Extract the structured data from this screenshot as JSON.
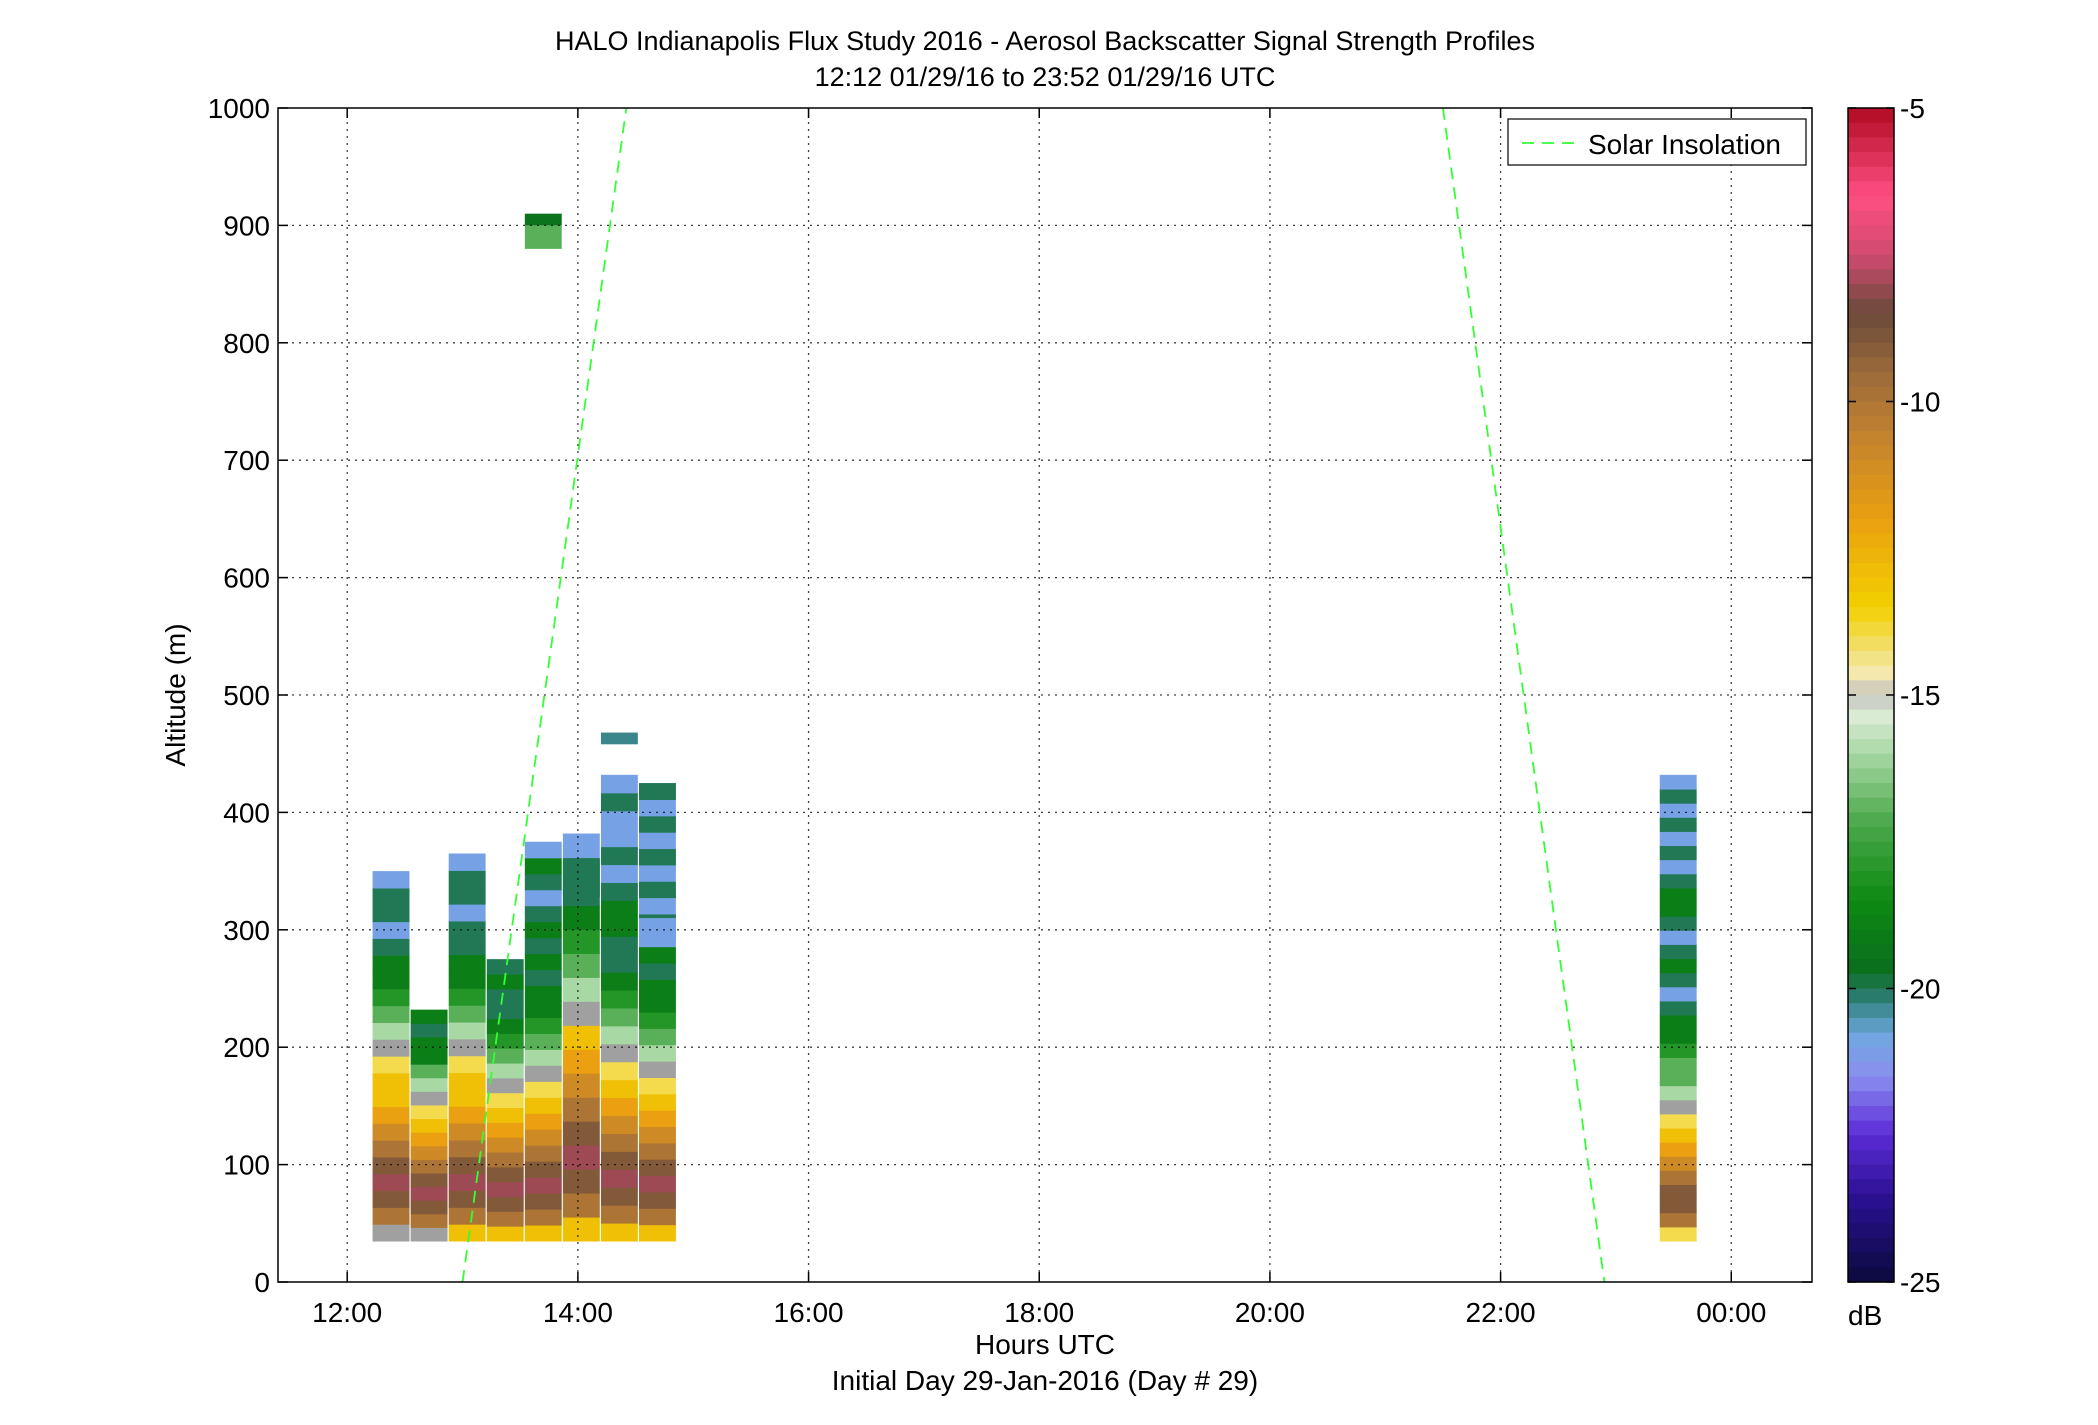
{
  "chart_data": {
    "type": "heatmap",
    "title": "HALO Indianapolis Flux Study 2016 - Aerosol Backscatter Signal Strength Profiles",
    "subtitle": "12:12 01/29/16 to 23:52 01/29/16  UTC",
    "xlabel": "Hours UTC",
    "xlabel2": "Initial Day 29-Jan-2016 (Day # 29)",
    "ylabel": "Altitude (m)",
    "xlim": [
      11.4,
      24.7
    ],
    "ylim": [
      0,
      1000
    ],
    "x_ticks": [
      12,
      14,
      16,
      18,
      20,
      22,
      24
    ],
    "x_tick_labels": [
      "12:00",
      "14:00",
      "16:00",
      "18:00",
      "20:00",
      "22:00",
      "00:00"
    ],
    "y_ticks": [
      0,
      100,
      200,
      300,
      400,
      500,
      600,
      700,
      800,
      900,
      1000
    ],
    "grid": true,
    "colorbar": {
      "label": "dB",
      "range": [
        -25,
        -5
      ],
      "ticks": [
        -5,
        -10,
        -15,
        -20,
        -25
      ],
      "stops": [
        {
          "v": -25,
          "c": "#0b0b3c"
        },
        {
          "v": -23.6,
          "c": "#2a1090"
        },
        {
          "v": -22.5,
          "c": "#5b2bd6"
        },
        {
          "v": -21.5,
          "c": "#8a8ef0"
        },
        {
          "v": -20.8,
          "c": "#6fa8e0"
        },
        {
          "v": -20.2,
          "c": "#2f7f7a"
        },
        {
          "v": -19.7,
          "c": "#0a6e1e"
        },
        {
          "v": -18.5,
          "c": "#0d8a12"
        },
        {
          "v": -17.2,
          "c": "#4aa84a"
        },
        {
          "v": -16.0,
          "c": "#a8d8a4"
        },
        {
          "v": -15.2,
          "c": "#e8f0e2"
        },
        {
          "v": -15.0,
          "c": "#a0a0a0"
        },
        {
          "v": -14.8,
          "c": "#f4ecc8"
        },
        {
          "v": -13.5,
          "c": "#f2d000"
        },
        {
          "v": -12.0,
          "c": "#eaa010"
        },
        {
          "v": -10.5,
          "c": "#c08030"
        },
        {
          "v": -9.5,
          "c": "#9a6a3a"
        },
        {
          "v": -8.5,
          "c": "#6a4a3a"
        },
        {
          "v": -7.5,
          "c": "#d04a70"
        },
        {
          "v": -6.5,
          "c": "#ff4f82"
        },
        {
          "v": -5,
          "c": "#b00a22"
        }
      ]
    },
    "legend": {
      "label": "Solar Insolation",
      "position": "top-right"
    },
    "solar_insolation": [
      {
        "x": [
          13.0,
          14.42
        ],
        "y": [
          0,
          1000
        ]
      },
      {
        "x": [
          21.5,
          22.9
        ],
        "y": [
          1000,
          0
        ]
      }
    ],
    "profiles": [
      {
        "t": 12.22,
        "top": 350,
        "values": [
          -15,
          -10,
          -9,
          -8,
          -9,
          -10,
          -11,
          -12,
          -13,
          -13,
          -14,
          -15,
          -16,
          -17,
          -18,
          -19,
          -19,
          -20,
          -21,
          -20,
          -20,
          -21
        ]
      },
      {
        "t": 12.55,
        "top": 232,
        "values": [
          -15,
          -10,
          -9,
          -8,
          -9,
          -10,
          -11,
          -12,
          -13,
          -14,
          -15,
          -16,
          -17,
          -19,
          -19,
          -20,
          -19
        ]
      },
      {
        "t": 12.88,
        "top": 365,
        "values": [
          -13,
          -10,
          -9,
          -8,
          -9,
          -10,
          -11,
          -12,
          -13,
          -13,
          -14,
          -15,
          -16,
          -17,
          -18,
          -19,
          -19,
          -20,
          -20,
          -21,
          -20,
          -20,
          -21
        ]
      },
      {
        "t": 13.21,
        "top": 275,
        "values": [
          -13,
          -10,
          -9,
          -8,
          -9,
          -10,
          -11,
          -12,
          -13,
          -14,
          -15,
          -16,
          -17,
          -18,
          -19,
          -20,
          -20,
          -19,
          -20
        ]
      },
      {
        "t": 13.54,
        "top": 375,
        "values": [
          -13,
          -10,
          -9,
          -8,
          -9,
          -10,
          -11,
          -12,
          -13,
          -14,
          -15,
          -16,
          -17,
          -18,
          -19,
          -19,
          -20,
          -19,
          -20,
          -19,
          -20,
          -21,
          -20,
          -19,
          -21
        ]
      },
      {
        "t": 13.87,
        "top": 382,
        "values": [
          -13,
          -10,
          -9,
          -8,
          -9,
          -10,
          -11,
          -12,
          -13,
          -15,
          -16,
          -17,
          -18,
          -19,
          -20,
          -20,
          -21
        ]
      },
      {
        "t": 14.2,
        "top": 432,
        "values": [
          -13,
          -10,
          -9,
          -8,
          -9,
          -10,
          -11,
          -12,
          -13,
          -14,
          -15,
          -16,
          -17,
          -18,
          -19,
          -20,
          -20,
          -19,
          -19,
          -20,
          -21,
          -20,
          -21,
          -21,
          -20,
          -21
        ]
      },
      {
        "t": 14.53,
        "top": 425,
        "values": [
          -13,
          -10,
          -9,
          -8,
          -9,
          -10,
          -11,
          -12,
          -13,
          -14,
          -15,
          -16,
          -17,
          -18,
          -19,
          -19,
          -20,
          -19,
          -21,
          -20,
          -21,
          -20,
          -21,
          -20,
          -21,
          -20,
          -21,
          -20
        ]
      },
      {
        "t": 23.38,
        "top": 432,
        "values": [
          -14,
          -10,
          -9,
          -9,
          -10,
          -11,
          -12,
          -13,
          -14,
          -15,
          -16,
          -17,
          -17,
          -18,
          -19,
          -19,
          -20,
          -21,
          -20,
          -19,
          -20,
          -21,
          -20,
          -19,
          -19,
          -20,
          -21,
          -20,
          -21,
          -20,
          -21,
          -20,
          -21
        ]
      }
    ],
    "extra_cells": [
      {
        "t": 13.54,
        "y0": 880,
        "y1": 900,
        "v": -17
      },
      {
        "t": 13.54,
        "y0": 900,
        "y1": 910,
        "v": -19.5
      },
      {
        "t": 14.2,
        "y0": 458,
        "y1": 468,
        "v": -20.3
      },
      {
        "t": 13.87,
        "y0": 328,
        "y1": 360,
        "v": -20
      },
      {
        "t": 14.53,
        "y0": 290,
        "y1": 310,
        "v": -21
      }
    ]
  }
}
